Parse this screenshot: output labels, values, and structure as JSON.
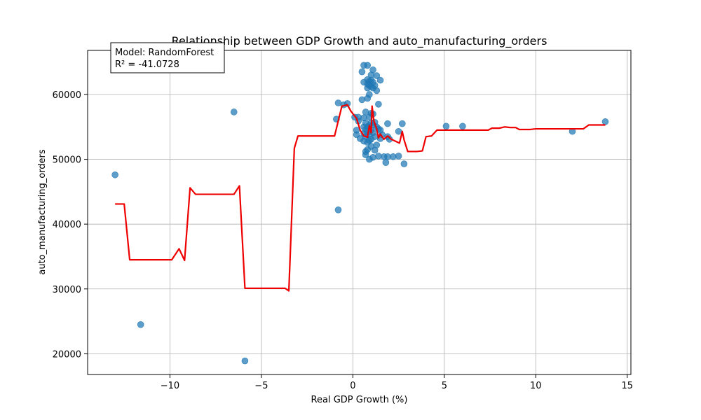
{
  "chart_data": {
    "type": "scatter",
    "title": "Relationship between GDP Growth and auto_manufacturing_orders",
    "xlabel": "Real GDP Growth (%)",
    "ylabel": "auto_manufacturing_orders",
    "xlim": [
      -14.5,
      15.2
    ],
    "ylim": [
      16800,
      66800
    ],
    "xticks": [
      -10,
      -5,
      0,
      5,
      10,
      15
    ],
    "xtick_labels": [
      "−10",
      "−5",
      "0",
      "5",
      "10",
      "15"
    ],
    "yticks": [
      20000,
      30000,
      40000,
      50000,
      60000
    ],
    "ytick_labels": [
      "20000",
      "30000",
      "40000",
      "50000",
      "60000"
    ],
    "grid": true,
    "annotation": {
      "line1": "Model: RandomForest",
      "line2": "R² = -41.0728"
    },
    "colors": {
      "points": "#1f77b4",
      "fit": "#ee0000"
    },
    "series": [
      {
        "type": "scatter",
        "points": [
          [
            -13,
            47600
          ],
          [
            -11.6,
            24500
          ],
          [
            -6.5,
            57300
          ],
          [
            -5.9,
            18900
          ],
          [
            -0.8,
            42200
          ],
          [
            -0.9,
            56200
          ],
          [
            -0.8,
            58700
          ],
          [
            -0.5,
            58400
          ],
          [
            -0.3,
            58600
          ],
          [
            0.1,
            56500
          ],
          [
            0.2,
            54500
          ],
          [
            0.2,
            53800
          ],
          [
            0.3,
            56500
          ],
          [
            0.3,
            55900
          ],
          [
            0.4,
            53200
          ],
          [
            0.5,
            63500
          ],
          [
            0.5,
            59200
          ],
          [
            0.6,
            64500
          ],
          [
            0.6,
            61900
          ],
          [
            0.6,
            56400
          ],
          [
            0.6,
            55000
          ],
          [
            0.6,
            54000
          ],
          [
            0.6,
            52800
          ],
          [
            0.7,
            57300
          ],
          [
            0.7,
            55600
          ],
          [
            0.7,
            54600
          ],
          [
            0.7,
            53500
          ],
          [
            0.7,
            51200
          ],
          [
            0.7,
            50700
          ],
          [
            0.8,
            64500
          ],
          [
            0.8,
            62300
          ],
          [
            0.8,
            61600
          ],
          [
            0.8,
            61000
          ],
          [
            0.8,
            59400
          ],
          [
            0.8,
            55000
          ],
          [
            0.8,
            54100
          ],
          [
            0.8,
            52600
          ],
          [
            0.8,
            51500
          ],
          [
            0.9,
            62000
          ],
          [
            0.9,
            61400
          ],
          [
            0.9,
            60000
          ],
          [
            0.9,
            56500
          ],
          [
            0.9,
            55200
          ],
          [
            0.9,
            53800
          ],
          [
            0.9,
            52900
          ],
          [
            0.9,
            50000
          ],
          [
            1.0,
            63000
          ],
          [
            1.0,
            62200
          ],
          [
            1.0,
            61200
          ],
          [
            1.0,
            57100
          ],
          [
            1.0,
            55600
          ],
          [
            1.0,
            54500
          ],
          [
            1.0,
            53100
          ],
          [
            1.0,
            52000
          ],
          [
            1.1,
            63800
          ],
          [
            1.1,
            61900
          ],
          [
            1.1,
            61000
          ],
          [
            1.1,
            57000
          ],
          [
            1.1,
            55300
          ],
          [
            1.1,
            54100
          ],
          [
            1.1,
            50300
          ],
          [
            1.2,
            61400
          ],
          [
            1.2,
            55700
          ],
          [
            1.2,
            53500
          ],
          [
            1.2,
            51400
          ],
          [
            1.3,
            62900
          ],
          [
            1.3,
            60600
          ],
          [
            1.3,
            55000
          ],
          [
            1.3,
            52200
          ],
          [
            1.4,
            58500
          ],
          [
            1.4,
            54700
          ],
          [
            1.4,
            50500
          ],
          [
            1.5,
            62200
          ],
          [
            1.5,
            54500
          ],
          [
            1.5,
            53200
          ],
          [
            1.6,
            53800
          ],
          [
            1.7,
            50400
          ],
          [
            1.8,
            49500
          ],
          [
            1.9,
            55500
          ],
          [
            1.9,
            53500
          ],
          [
            1.9,
            50400
          ],
          [
            2.0,
            53100
          ],
          [
            2.2,
            50400
          ],
          [
            2.5,
            54300
          ],
          [
            2.5,
            50500
          ],
          [
            2.7,
            55500
          ],
          [
            2.8,
            49300
          ],
          [
            5.1,
            55100
          ],
          [
            6.0,
            55100
          ],
          [
            12.0,
            54300
          ],
          [
            13.8,
            55800
          ]
        ]
      },
      {
        "type": "line",
        "points": [
          [
            -13,
            43100
          ],
          [
            -12.5,
            43100
          ],
          [
            -12.2,
            34500
          ],
          [
            -11,
            34500
          ],
          [
            -9.9,
            34500
          ],
          [
            -9.5,
            36200
          ],
          [
            -9.2,
            34400
          ],
          [
            -8.9,
            45600
          ],
          [
            -8.6,
            44600
          ],
          [
            -7,
            44600
          ],
          [
            -6.5,
            44600
          ],
          [
            -6.2,
            45900
          ],
          [
            -5.9,
            30100
          ],
          [
            -4,
            30100
          ],
          [
            -3.7,
            30100
          ],
          [
            -3.5,
            29700
          ],
          [
            -3.2,
            51700
          ],
          [
            -3.0,
            53600
          ],
          [
            -1.0,
            53600
          ],
          [
            -0.6,
            58200
          ],
          [
            -0.3,
            58400
          ],
          [
            -0.1,
            57400
          ],
          [
            0.2,
            56300
          ],
          [
            0.4,
            54500
          ],
          [
            0.6,
            53600
          ],
          [
            0.8,
            53400
          ],
          [
            0.9,
            55200
          ],
          [
            1.0,
            54100
          ],
          [
            1.05,
            58200
          ],
          [
            1.15,
            55900
          ],
          [
            1.3,
            54700
          ],
          [
            1.4,
            53300
          ],
          [
            1.5,
            53900
          ],
          [
            1.7,
            53100
          ],
          [
            1.9,
            53600
          ],
          [
            2.1,
            53100
          ],
          [
            2.4,
            52700
          ],
          [
            2.55,
            52500
          ],
          [
            2.7,
            54300
          ],
          [
            2.8,
            53000
          ],
          [
            3.0,
            51200
          ],
          [
            3.5,
            51200
          ],
          [
            3.8,
            51300
          ],
          [
            4.0,
            53500
          ],
          [
            4.3,
            53600
          ],
          [
            4.6,
            54500
          ],
          [
            5.0,
            54500
          ],
          [
            6.5,
            54500
          ],
          [
            7.0,
            54500
          ],
          [
            7.4,
            54500
          ],
          [
            7.6,
            54800
          ],
          [
            8.0,
            54800
          ],
          [
            8.3,
            55000
          ],
          [
            8.6,
            54900
          ],
          [
            8.9,
            54900
          ],
          [
            9.1,
            54600
          ],
          [
            9.7,
            54600
          ],
          [
            10.0,
            54700
          ],
          [
            11.0,
            54700
          ],
          [
            12.0,
            54700
          ],
          [
            12.6,
            54700
          ],
          [
            12.9,
            55300
          ],
          [
            13.5,
            55300
          ],
          [
            13.8,
            55300
          ]
        ]
      }
    ]
  }
}
